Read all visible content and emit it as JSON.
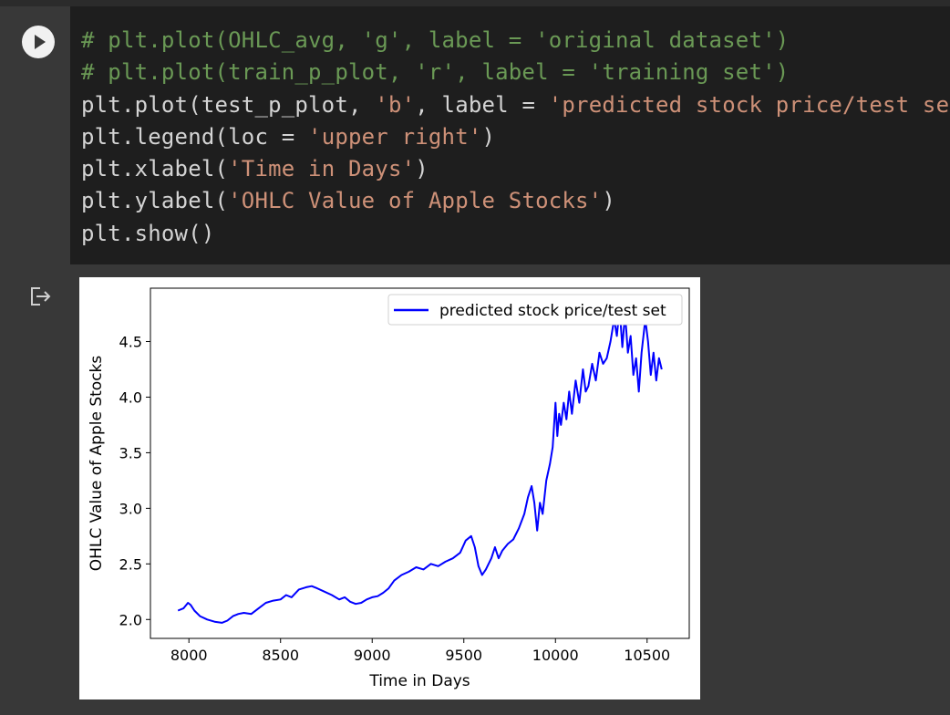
{
  "run_button": {
    "icon": "play-icon"
  },
  "code": {
    "lines": [
      [
        {
          "t": "# plt.plot(OHLC_avg, 'g', label = 'original dataset')",
          "c": "cmt"
        }
      ],
      [
        {
          "t": "# plt.plot(train_p_plot, 'r', label = 'training set')",
          "c": "cmt"
        }
      ],
      [
        {
          "t": "plt.plot(test_p_plot, ",
          "c": ""
        },
        {
          "t": "'b'",
          "c": "str"
        },
        {
          "t": ", label = ",
          "c": ""
        },
        {
          "t": "'predicted stock price/test set'",
          "c": "str"
        },
        {
          "t": ")",
          "c": ""
        }
      ],
      [
        {
          "t": "plt.legend(loc = ",
          "c": ""
        },
        {
          "t": "'upper right'",
          "c": "str"
        },
        {
          "t": ")",
          "c": ""
        }
      ],
      [
        {
          "t": "plt.xlabel(",
          "c": ""
        },
        {
          "t": "'Time in Days'",
          "c": "str"
        },
        {
          "t": ")",
          "c": ""
        }
      ],
      [
        {
          "t": "plt.ylabel(",
          "c": ""
        },
        {
          "t": "'OHLC Value of Apple Stocks'",
          "c": "str"
        },
        {
          "t": ")",
          "c": ""
        }
      ],
      [
        {
          "t": "plt.show()",
          "c": ""
        }
      ]
    ]
  },
  "output": {
    "icon": "output-redirect-icon"
  },
  "colors": {
    "line": "#0000ff",
    "comment": "#6a9955",
    "string": "#ce9178"
  },
  "chart_data": {
    "type": "line",
    "xlabel": "Time in Days",
    "ylabel": "OHLC Value of Apple Stocks",
    "xlim": [
      7790,
      10730
    ],
    "ylim": [
      1.83,
      4.98
    ],
    "xticks": [
      "8000",
      "8500",
      "9000",
      "9500",
      "10000",
      "10500"
    ],
    "yticks": [
      "2.0",
      "2.5",
      "3.0",
      "3.5",
      "4.0",
      "4.5"
    ],
    "legend": {
      "loc": "upper right",
      "entries": [
        "predicted stock price/test set"
      ]
    },
    "series": [
      {
        "name": "predicted stock price/test set",
        "color": "#0000ff",
        "x": [
          7940,
          7970,
          7995,
          8010,
          8030,
          8060,
          8100,
          8140,
          8180,
          8210,
          8240,
          8270,
          8300,
          8340,
          8380,
          8420,
          8460,
          8500,
          8530,
          8560,
          8600,
          8640,
          8670,
          8700,
          8740,
          8780,
          8820,
          8850,
          8880,
          8910,
          8940,
          8970,
          9000,
          9030,
          9060,
          9090,
          9120,
          9160,
          9200,
          9240,
          9280,
          9320,
          9360,
          9400,
          9440,
          9480,
          9510,
          9540,
          9560,
          9580,
          9600,
          9620,
          9650,
          9670,
          9690,
          9710,
          9740,
          9770,
          9800,
          9830,
          9850,
          9870,
          9885,
          9900,
          9915,
          9930,
          9950,
          9970,
          9985,
          10000,
          10010,
          10020,
          10030,
          10045,
          10060,
          10075,
          10090,
          10110,
          10130,
          10150,
          10165,
          10180,
          10200,
          10220,
          10240,
          10260,
          10280,
          10300,
          10320,
          10335,
          10350,
          10365,
          10380,
          10395,
          10410,
          10425,
          10440,
          10455,
          10470,
          10490,
          10505,
          10520,
          10535,
          10550,
          10565,
          10580
        ],
        "y": [
          2.08,
          2.1,
          2.15,
          2.13,
          2.08,
          2.03,
          2.0,
          1.98,
          1.97,
          1.99,
          2.03,
          2.05,
          2.06,
          2.05,
          2.1,
          2.15,
          2.17,
          2.18,
          2.22,
          2.2,
          2.27,
          2.29,
          2.3,
          2.28,
          2.25,
          2.22,
          2.18,
          2.2,
          2.16,
          2.14,
          2.15,
          2.18,
          2.2,
          2.21,
          2.24,
          2.28,
          2.35,
          2.4,
          2.43,
          2.47,
          2.45,
          2.5,
          2.48,
          2.52,
          2.55,
          2.6,
          2.71,
          2.75,
          2.65,
          2.48,
          2.4,
          2.45,
          2.55,
          2.65,
          2.55,
          2.62,
          2.68,
          2.72,
          2.82,
          2.95,
          3.1,
          3.2,
          3.05,
          2.8,
          3.05,
          2.95,
          3.25,
          3.4,
          3.55,
          3.95,
          3.65,
          3.85,
          3.75,
          3.95,
          3.8,
          4.05,
          3.85,
          4.15,
          3.95,
          4.25,
          4.05,
          4.1,
          4.3,
          4.15,
          4.4,
          4.3,
          4.35,
          4.5,
          4.7,
          4.55,
          4.8,
          4.45,
          4.75,
          4.4,
          4.55,
          4.2,
          4.35,
          4.05,
          4.4,
          4.7,
          4.5,
          4.2,
          4.4,
          4.15,
          4.35,
          4.25
        ]
      }
    ]
  }
}
